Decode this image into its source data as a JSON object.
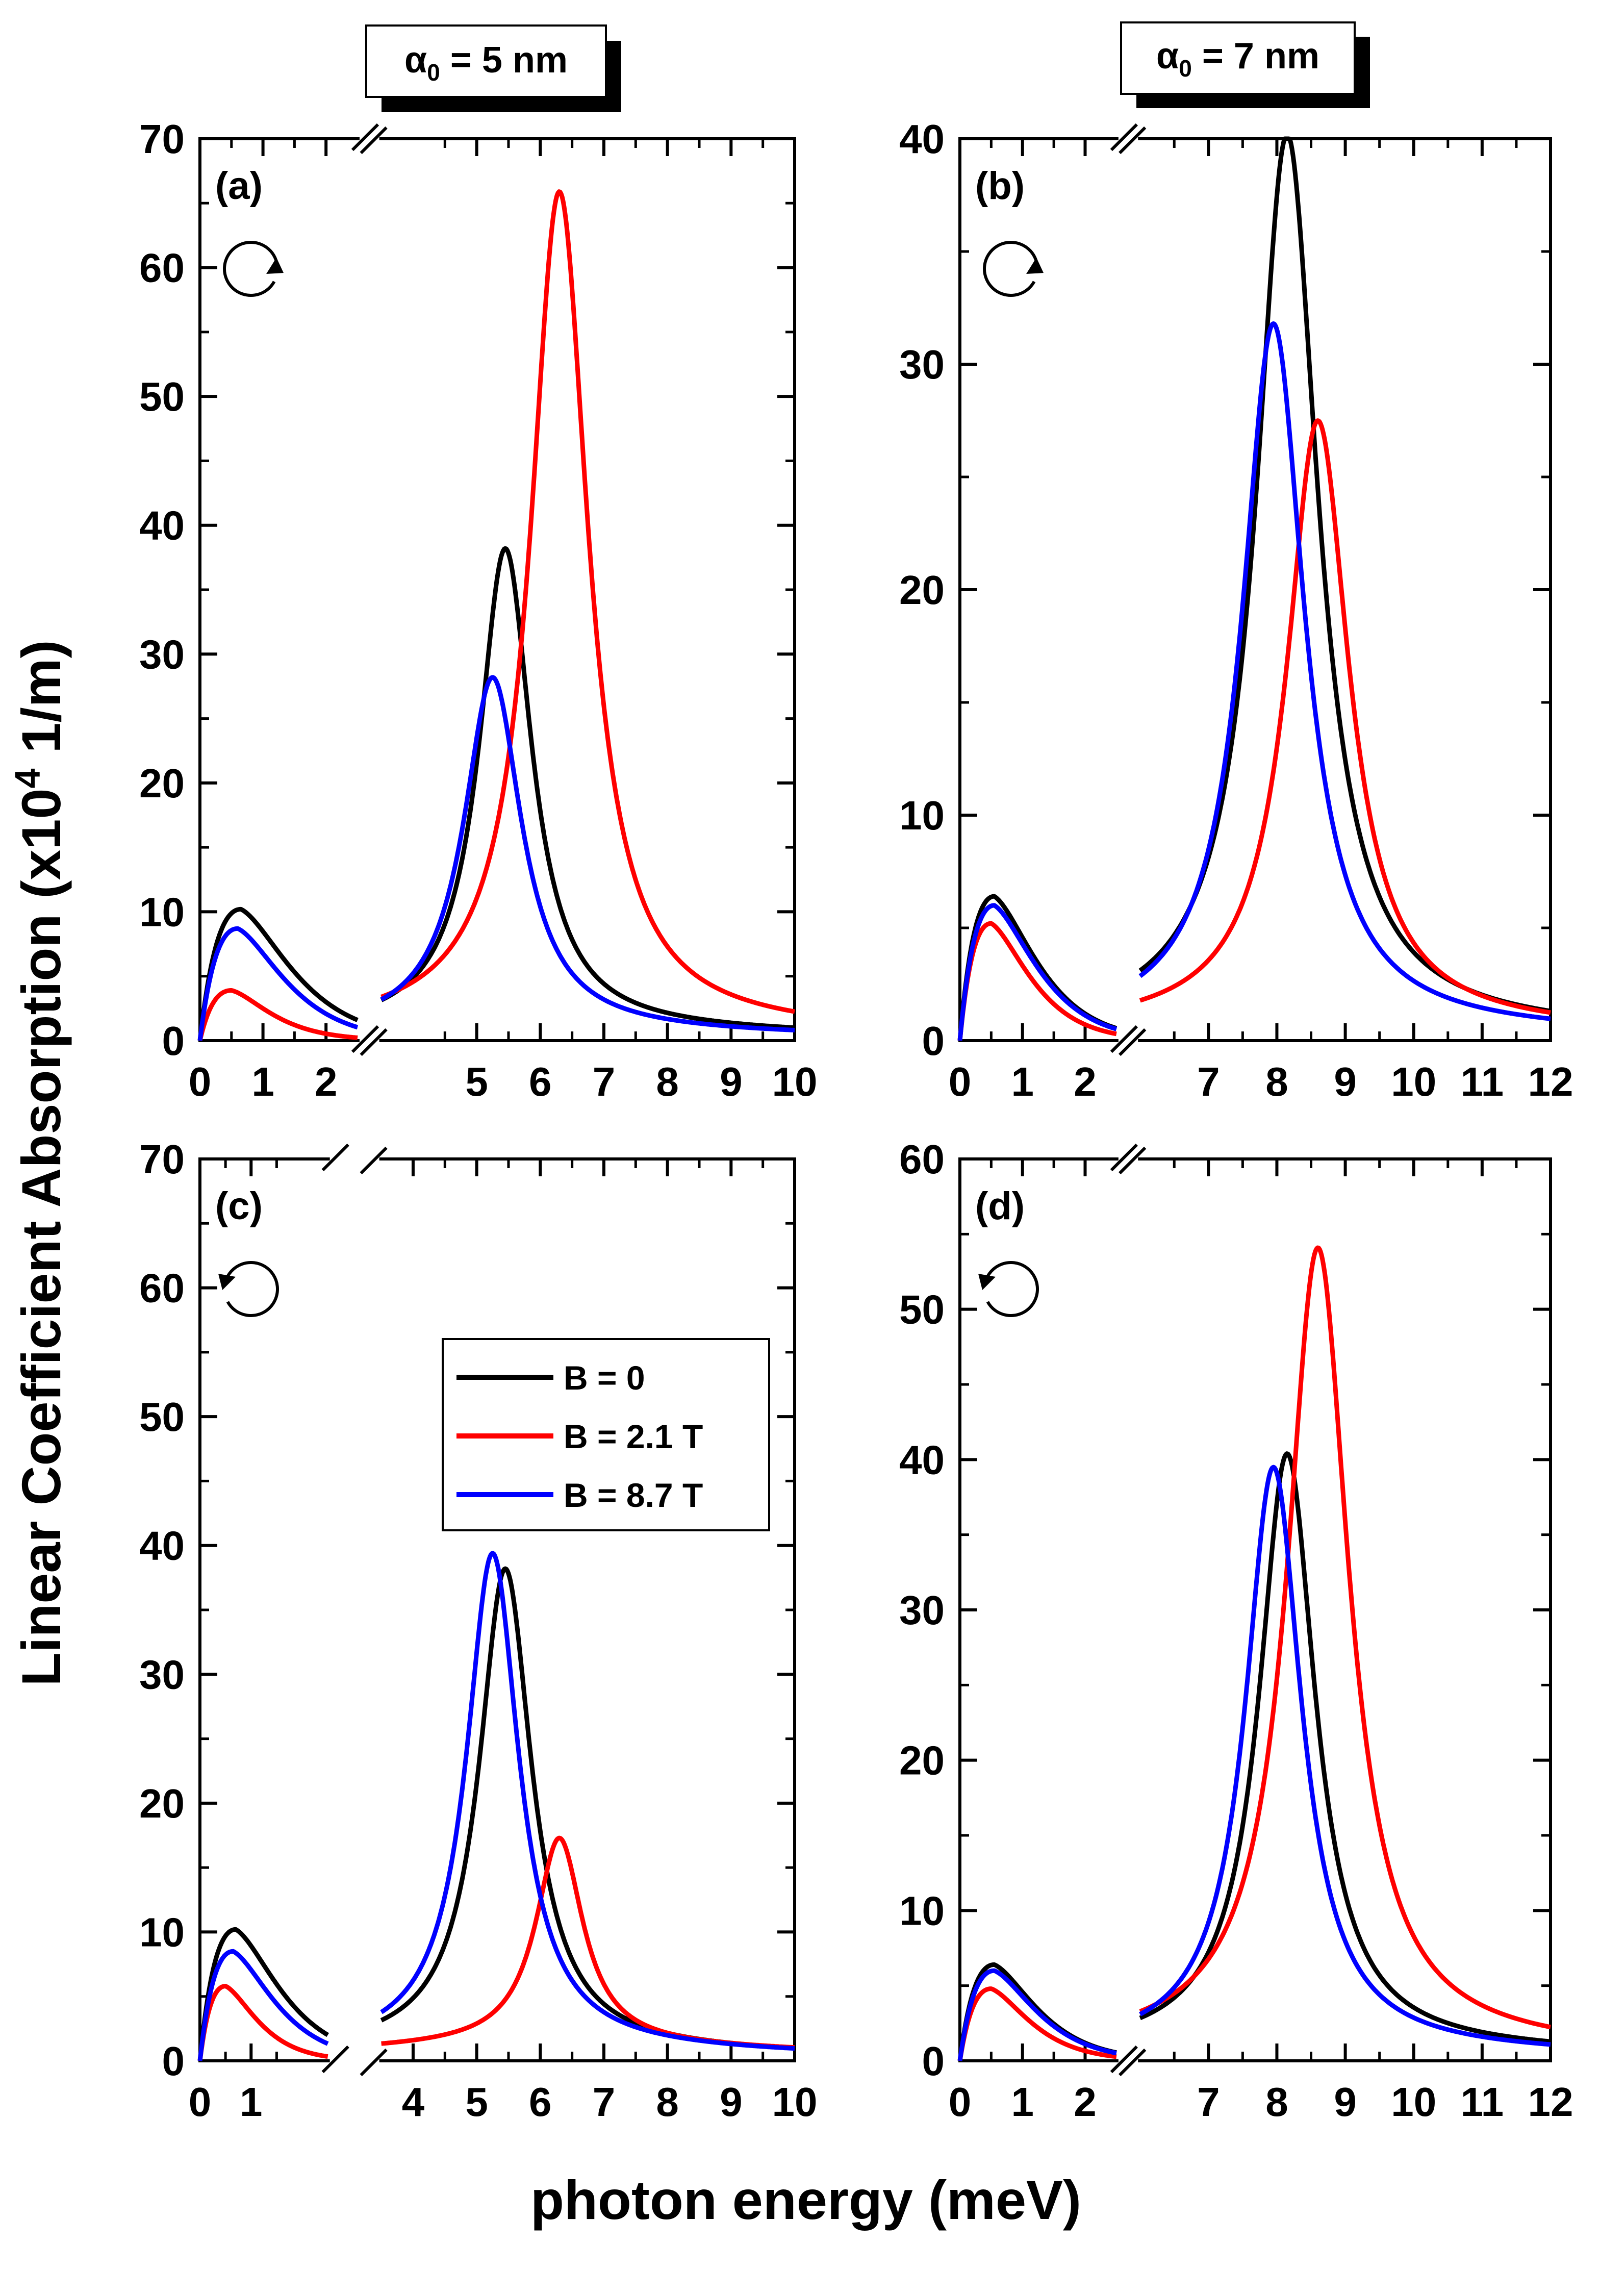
{
  "figure": {
    "xlabel": "photon energy (meV)",
    "ylabel_main": "Linear Coefficient Absorption (x10",
    "ylabel_sup": "4",
    "ylabel_tail": " 1/m)",
    "column_titles": [
      {
        "alpha": "α",
        "sub": "0",
        "rest": " = 5  nm"
      },
      {
        "alpha": "α",
        "sub": "0",
        "rest": " = 7  nm"
      }
    ],
    "legend": [
      {
        "label": "B = 0",
        "color": "#000000"
      },
      {
        "label": "B = 2.1 T",
        "color": "#ff0000"
      },
      {
        "label": "B = 8.7 T",
        "color": "#0000ff"
      }
    ]
  },
  "chart_data": [
    {
      "type": "line",
      "panel_label": "(a)",
      "polarization": "clockwise",
      "xlabel": "photon energy (meV)",
      "ylabel": "Linear Coefficient Absorption (x10^4 1/m)",
      "broken_axis": {
        "segment1": [
          0,
          2.5
        ],
        "segment2": [
          3.5,
          10
        ]
      },
      "ylim": [
        0,
        70
      ],
      "yticks": [
        "0",
        "10",
        "20",
        "30",
        "40",
        "50",
        "60",
        "70"
      ],
      "xticks": [
        "0",
        "1",
        "2",
        "5",
        "6",
        "7",
        "8",
        "9",
        "10"
      ],
      "tick_values": [
        0,
        1,
        2,
        5,
        6,
        7,
        8,
        9,
        10
      ],
      "series": [
        {
          "name": "B = 0",
          "color": "#000000",
          "low": {
            "peak": 10.2,
            "pos": 0.65
          },
          "main": {
            "peak": 37.0,
            "pos": 5.45,
            "width": 0.5,
            "tail": 1.2
          }
        },
        {
          "name": "B = 2.1 T",
          "color": "#ff0000",
          "low": {
            "peak": 3.9,
            "pos": 0.5
          },
          "main": {
            "peak": 64.3,
            "pos": 6.3,
            "width": 0.55,
            "tail": 1.6
          }
        },
        {
          "name": "B = 8.7 T",
          "color": "#0000ff",
          "low": {
            "peak": 8.7,
            "pos": 0.6
          },
          "main": {
            "peak": 27.2,
            "pos": 5.25,
            "width": 0.55,
            "tail": 1.0
          }
        }
      ]
    },
    {
      "type": "line",
      "panel_label": "(b)",
      "polarization": "clockwise",
      "xlabel": "photon energy (meV)",
      "ylabel": "Linear Coefficient Absorption (x10^4 1/m)",
      "broken_axis": {
        "segment1": [
          0,
          2.5
        ],
        "segment2": [
          6,
          12
        ]
      },
      "ylim": [
        0,
        40
      ],
      "yticks": [
        "0",
        "10",
        "20",
        "30",
        "40"
      ],
      "xticks": [
        "0",
        "1",
        "2",
        "7",
        "8",
        "9",
        "10",
        "11",
        "12"
      ],
      "tick_values": [
        0,
        1,
        2,
        7,
        8,
        9,
        10,
        11,
        12
      ],
      "series": [
        {
          "name": "B = 0",
          "color": "#000000",
          "low": {
            "peak": 6.4,
            "pos": 0.55
          },
          "main": {
            "peak": 39.2,
            "pos": 8.15,
            "width": 0.55,
            "tail": 1.0
          }
        },
        {
          "name": "B = 2.1 T",
          "color": "#ff0000",
          "low": {
            "peak": 5.2,
            "pos": 0.5
          },
          "main": {
            "peak": 26.5,
            "pos": 8.6,
            "width": 0.55,
            "tail": 1.0
          }
        },
        {
          "name": "B = 8.7 T",
          "color": "#0000ff",
          "low": {
            "peak": 6.0,
            "pos": 0.55
          },
          "main": {
            "peak": 31.0,
            "pos": 7.95,
            "width": 0.55,
            "tail": 0.8
          }
        }
      ]
    },
    {
      "type": "line",
      "panel_label": "(c)",
      "polarization": "counterclockwise",
      "xlabel": "photon energy (meV)",
      "ylabel": "Linear Coefficient Absorption (x10^4 1/m)",
      "broken_axis": {
        "segment1": [
          0,
          2.5
        ],
        "segment2": [
          3.5,
          10
        ]
      },
      "ylim": [
        0,
        70
      ],
      "yticks": [
        "0",
        "10",
        "20",
        "30",
        "40",
        "50",
        "60",
        "70"
      ],
      "xticks": [
        "0",
        "1",
        "4",
        "5",
        "6",
        "7",
        "8",
        "9",
        "10"
      ],
      "tick_values": [
        0,
        1,
        4,
        5,
        6,
        7,
        8,
        9,
        10
      ],
      "series": [
        {
          "name": "B = 0",
          "color": "#000000",
          "low": {
            "peak": 10.2,
            "pos": 0.7
          },
          "main": {
            "peak": 37.0,
            "pos": 5.45,
            "width": 0.5,
            "tail": 1.2
          }
        },
        {
          "name": "B = 2.1 T",
          "color": "#ff0000",
          "low": {
            "peak": 5.8,
            "pos": 0.5
          },
          "main": {
            "peak": 15.8,
            "pos": 6.3,
            "width": 0.45,
            "tail": 1.5
          }
        },
        {
          "name": "B = 8.7 T",
          "color": "#0000ff",
          "low": {
            "peak": 8.5,
            "pos": 0.65
          },
          "main": {
            "peak": 38.2,
            "pos": 5.25,
            "width": 0.5,
            "tail": 1.2
          }
        }
      ]
    },
    {
      "type": "line",
      "panel_label": "(d)",
      "polarization": "counterclockwise",
      "xlabel": "photon energy (meV)",
      "ylabel": "Linear Coefficient Absorption (x10^4 1/m)",
      "broken_axis": {
        "segment1": [
          0,
          2.5
        ],
        "segment2": [
          6,
          12
        ]
      },
      "ylim": [
        0,
        60
      ],
      "yticks": [
        "0",
        "10",
        "20",
        "30",
        "40",
        "50",
        "60"
      ],
      "xticks": [
        "0",
        "1",
        "2",
        "7",
        "8",
        "9",
        "10",
        "11",
        "12"
      ],
      "tick_values": [
        0,
        1,
        2,
        7,
        8,
        9,
        10,
        11,
        12
      ],
      "series": [
        {
          "name": "B = 0",
          "color": "#000000",
          "low": {
            "peak": 6.4,
            "pos": 0.55
          },
          "main": {
            "peak": 39.2,
            "pos": 8.15,
            "width": 0.5,
            "tail": 1.2
          }
        },
        {
          "name": "B = 2.1 T",
          "color": "#ff0000",
          "low": {
            "peak": 4.8,
            "pos": 0.5
          },
          "main": {
            "peak": 52.5,
            "pos": 8.6,
            "width": 0.55,
            "tail": 1.6
          }
        },
        {
          "name": "B = 8.7 T",
          "color": "#0000ff",
          "low": {
            "peak": 6.0,
            "pos": 0.55
          },
          "main": {
            "peak": 38.5,
            "pos": 7.95,
            "width": 0.5,
            "tail": 1.0
          }
        }
      ]
    }
  ]
}
